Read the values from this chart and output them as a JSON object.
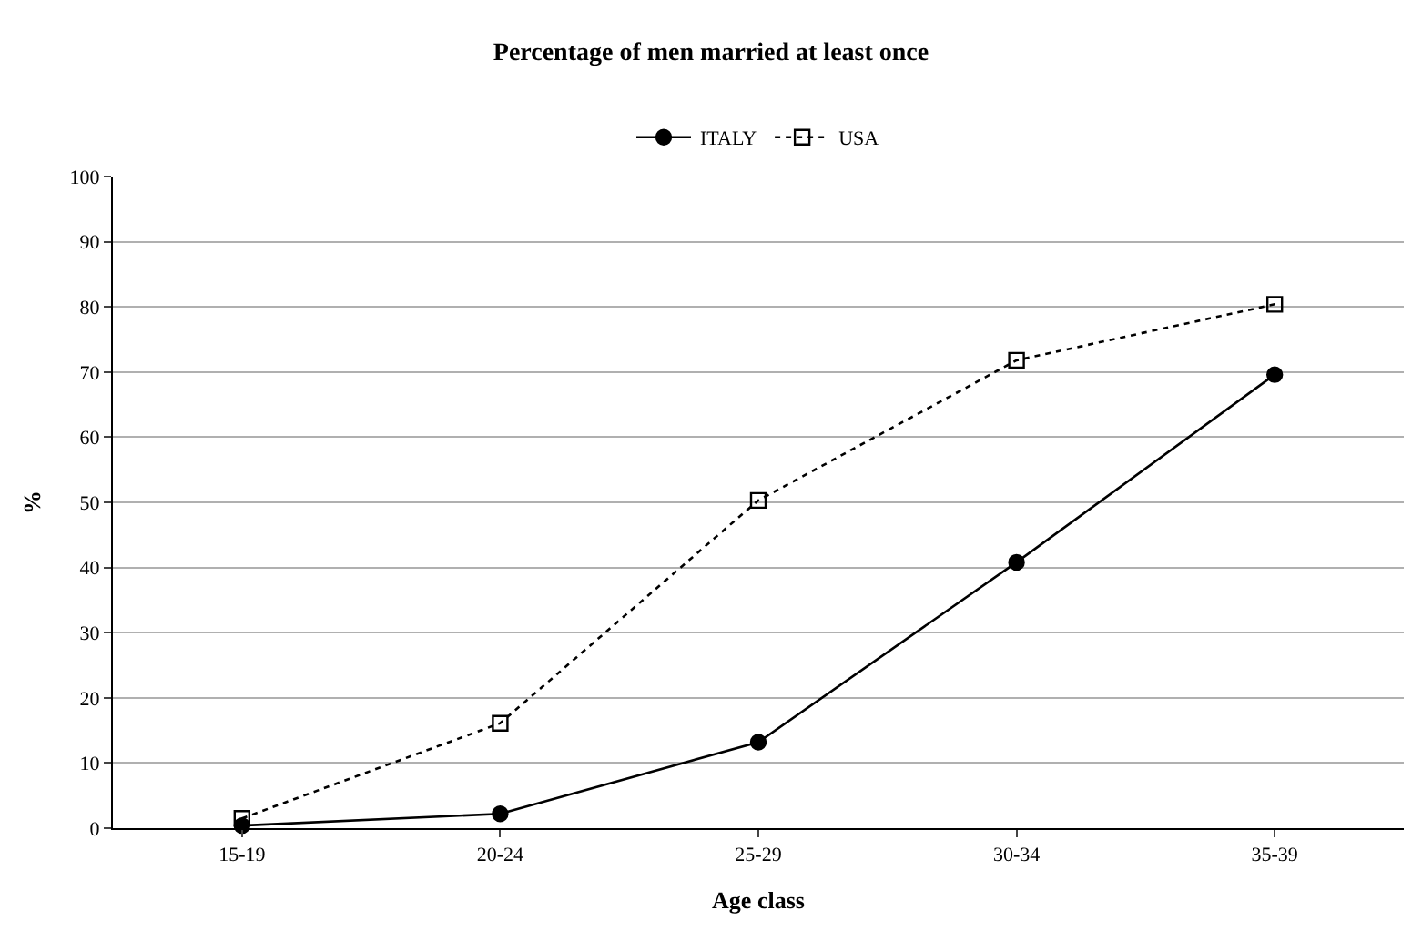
{
  "chart_data": {
    "type": "line",
    "title": "Percentage of men married at least once",
    "xlabel": "Age class",
    "ylabel": "%",
    "categories": [
      "15-19",
      "20-24",
      "25-29",
      "30-34",
      "35-39"
    ],
    "series": [
      {
        "name": "ITALY",
        "color": "#000000",
        "marker": "circle",
        "line_style": "solid",
        "values": [
          0.4,
          2.2,
          13.2,
          40.8,
          69.6
        ]
      },
      {
        "name": "USA",
        "color": "#000000",
        "marker": "square",
        "line_style": "dotted",
        "values": [
          1.5,
          16.1,
          50.3,
          71.8,
          80.4
        ]
      }
    ],
    "ylim": [
      0,
      100
    ],
    "yticks": [
      0,
      10,
      20,
      30,
      40,
      50,
      60,
      70,
      80,
      90,
      100
    ],
    "grid": "y",
    "legend": "top"
  }
}
